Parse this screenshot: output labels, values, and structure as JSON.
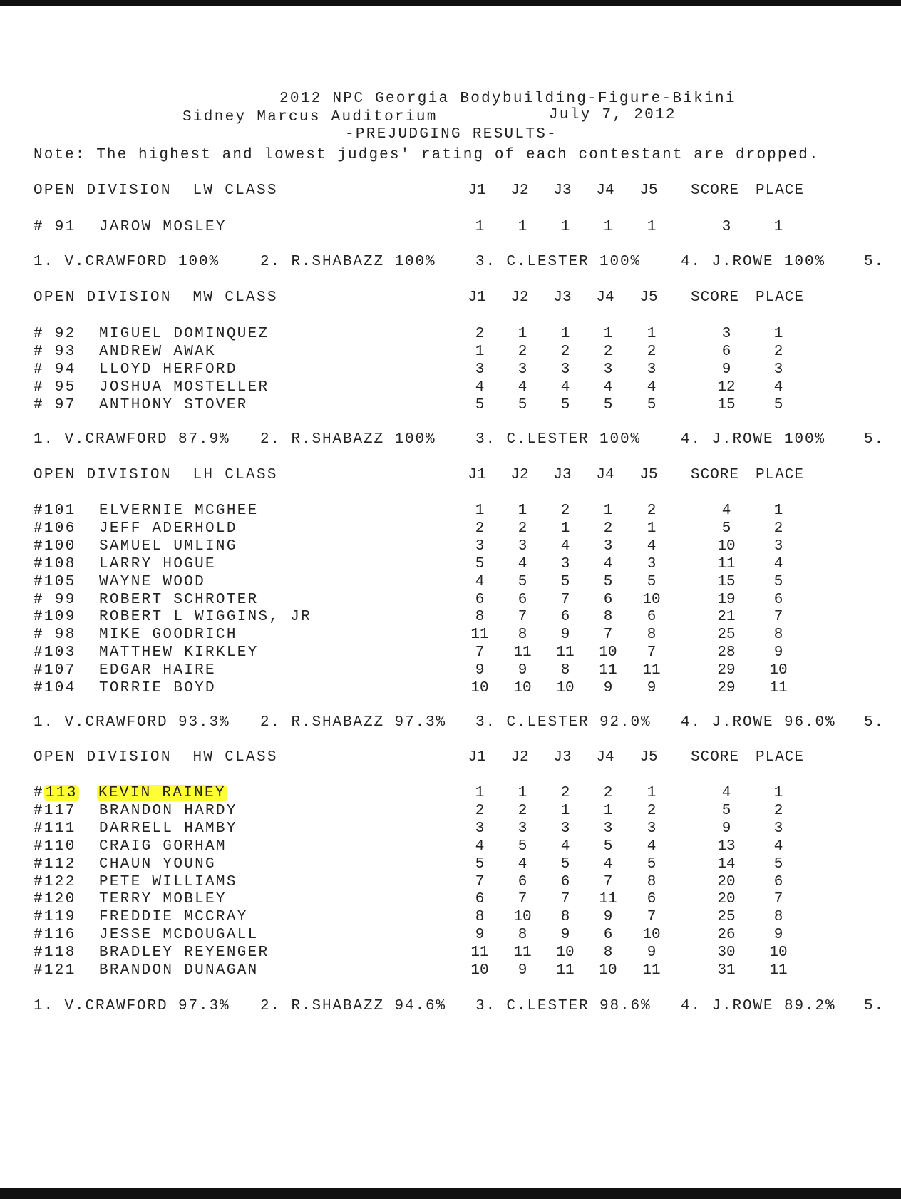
{
  "header": {
    "title": "2012 NPC Georgia Bodybuilding-Figure-Bikini",
    "venue": "Sidney Marcus Auditorium",
    "date": "July 7, 2012",
    "subtitle": "-PREJUDGING RESULTS-",
    "note": "Note: The highest and lowest judges' rating of each contestant are dropped."
  },
  "columns": [
    "J1",
    "J2",
    "J3",
    "J4",
    "J5",
    "SCORE",
    "PLACE"
  ],
  "highlight_color": "#ffff33",
  "sections": [
    {
      "title": "OPEN DIVISION  LW CLASS",
      "rows": [
        {
          "num": "# 91",
          "name": "JAROW MOSLEY",
          "j": [
            "1",
            "1",
            "1",
            "1",
            "1"
          ],
          "score": "3",
          "place": "1"
        }
      ],
      "judges": [
        {
          "label": "1. V.CRAWFORD",
          "pct": "100%"
        },
        {
          "label": "2. R.SHABAZZ",
          "pct": "100%"
        },
        {
          "label": "3. C.LESTER",
          "pct": "100%"
        },
        {
          "label": "4. J.ROWE",
          "pct": "100%"
        },
        {
          "label": "5.",
          "pct": ""
        }
      ]
    },
    {
      "title": "OPEN DIVISION  MW CLASS",
      "rows": [
        {
          "num": "# 92",
          "name": "MIGUEL DOMINQUEZ",
          "j": [
            "2",
            "1",
            "1",
            "1",
            "1"
          ],
          "score": "3",
          "place": "1"
        },
        {
          "num": "# 93",
          "name": "ANDREW AWAK",
          "j": [
            "1",
            "2",
            "2",
            "2",
            "2"
          ],
          "score": "6",
          "place": "2"
        },
        {
          "num": "# 94",
          "name": "LLOYD HERFORD",
          "j": [
            "3",
            "3",
            "3",
            "3",
            "3"
          ],
          "score": "9",
          "place": "3"
        },
        {
          "num": "# 95",
          "name": "JOSHUA MOSTELLER",
          "j": [
            "4",
            "4",
            "4",
            "4",
            "4"
          ],
          "score": "12",
          "place": "4"
        },
        {
          "num": "# 97",
          "name": "ANTHONY STOVER",
          "j": [
            "5",
            "5",
            "5",
            "5",
            "5"
          ],
          "score": "15",
          "place": "5"
        }
      ],
      "judges": [
        {
          "label": "1. V.CRAWFORD",
          "pct": "87.9%"
        },
        {
          "label": "2. R.SHABAZZ",
          "pct": "100%"
        },
        {
          "label": "3. C.LESTER",
          "pct": "100%"
        },
        {
          "label": "4. J.ROWE",
          "pct": "100%"
        },
        {
          "label": "5.",
          "pct": ""
        }
      ]
    },
    {
      "title": "OPEN DIVISION  LH CLASS",
      "rows": [
        {
          "num": "#101",
          "name": "ELVERNIE MCGHEE",
          "j": [
            "1",
            "1",
            "2",
            "1",
            "2"
          ],
          "score": "4",
          "place": "1"
        },
        {
          "num": "#106",
          "name": "JEFF ADERHOLD",
          "j": [
            "2",
            "2",
            "1",
            "2",
            "1"
          ],
          "score": "5",
          "place": "2"
        },
        {
          "num": "#100",
          "name": "SAMUEL UMLING",
          "j": [
            "3",
            "3",
            "4",
            "3",
            "4"
          ],
          "score": "10",
          "place": "3"
        },
        {
          "num": "#108",
          "name": "LARRY HOGUE",
          "j": [
            "5",
            "4",
            "3",
            "4",
            "3"
          ],
          "score": "11",
          "place": "4"
        },
        {
          "num": "#105",
          "name": "WAYNE WOOD",
          "j": [
            "4",
            "5",
            "5",
            "5",
            "5"
          ],
          "score": "15",
          "place": "5"
        },
        {
          "num": "# 99",
          "name": "ROBERT SCHROTER",
          "j": [
            "6",
            "6",
            "7",
            "6",
            "10"
          ],
          "score": "19",
          "place": "6"
        },
        {
          "num": "#109",
          "name": "ROBERT L WIGGINS, JR",
          "j": [
            "8",
            "7",
            "6",
            "8",
            "6"
          ],
          "score": "21",
          "place": "7"
        },
        {
          "num": "# 98",
          "name": "MIKE GOODRICH",
          "j": [
            "11",
            "8",
            "9",
            "7",
            "8"
          ],
          "score": "25",
          "place": "8"
        },
        {
          "num": "#103",
          "name": "MATTHEW KIRKLEY",
          "j": [
            "7",
            "11",
            "11",
            "10",
            "7"
          ],
          "score": "28",
          "place": "9"
        },
        {
          "num": "#107",
          "name": "EDGAR HAIRE",
          "j": [
            "9",
            "9",
            "8",
            "11",
            "11"
          ],
          "score": "29",
          "place": "10"
        },
        {
          "num": "#104",
          "name": "TORRIE BOYD",
          "j": [
            "10",
            "10",
            "10",
            "9",
            "9"
          ],
          "score": "29",
          "place": "11"
        }
      ],
      "judges": [
        {
          "label": "1. V.CRAWFORD",
          "pct": "93.3%"
        },
        {
          "label": "2. R.SHABAZZ",
          "pct": "97.3%"
        },
        {
          "label": "3. C.LESTER",
          "pct": "92.0%"
        },
        {
          "label": "4. J.ROWE",
          "pct": "96.0%"
        },
        {
          "label": "5.",
          "pct": ""
        }
      ]
    },
    {
      "title": "OPEN DIVISION  HW CLASS",
      "rows": [
        {
          "num": "#113",
          "name": "KEVIN RAINEY",
          "j": [
            "1",
            "1",
            "2",
            "2",
            "1"
          ],
          "score": "4",
          "place": "1",
          "highlighted": true
        },
        {
          "num": "#117",
          "name": "BRANDON HARDY",
          "j": [
            "2",
            "2",
            "1",
            "1",
            "2"
          ],
          "score": "5",
          "place": "2"
        },
        {
          "num": "#111",
          "name": "DARRELL HAMBY",
          "j": [
            "3",
            "3",
            "3",
            "3",
            "3"
          ],
          "score": "9",
          "place": "3"
        },
        {
          "num": "#110",
          "name": "CRAIG GORHAM",
          "j": [
            "4",
            "5",
            "4",
            "5",
            "4"
          ],
          "score": "13",
          "place": "4"
        },
        {
          "num": "#112",
          "name": "CHAUN YOUNG",
          "j": [
            "5",
            "4",
            "5",
            "4",
            "5"
          ],
          "score": "14",
          "place": "5"
        },
        {
          "num": "#122",
          "name": "PETE WILLIAMS",
          "j": [
            "7",
            "6",
            "6",
            "7",
            "8"
          ],
          "score": "20",
          "place": "6"
        },
        {
          "num": "#120",
          "name": "TERRY MOBLEY",
          "j": [
            "6",
            "7",
            "7",
            "11",
            "6"
          ],
          "score": "20",
          "place": "7"
        },
        {
          "num": "#119",
          "name": "FREDDIE MCCRAY",
          "j": [
            "8",
            "10",
            "8",
            "9",
            "7"
          ],
          "score": "25",
          "place": "8"
        },
        {
          "num": "#116",
          "name": "JESSE MCDOUGALL",
          "j": [
            "9",
            "8",
            "9",
            "6",
            "10"
          ],
          "score": "26",
          "place": "9"
        },
        {
          "num": "#118",
          "name": "BRADLEY REYENGER",
          "j": [
            "11",
            "11",
            "10",
            "8",
            "9"
          ],
          "score": "30",
          "place": "10"
        },
        {
          "num": "#121",
          "name": "BRANDON DUNAGAN",
          "j": [
            "10",
            "9",
            "11",
            "10",
            "11"
          ],
          "score": "31",
          "place": "11"
        }
      ],
      "judges": [
        {
          "label": "1. V.CRAWFORD",
          "pct": "97.3%"
        },
        {
          "label": "2. R.SHABAZZ",
          "pct": "94.6%"
        },
        {
          "label": "3. C.LESTER",
          "pct": "98.6%"
        },
        {
          "label": "4. J.ROWE",
          "pct": "89.2%"
        },
        {
          "label": "5.",
          "pct": ""
        }
      ]
    }
  ]
}
